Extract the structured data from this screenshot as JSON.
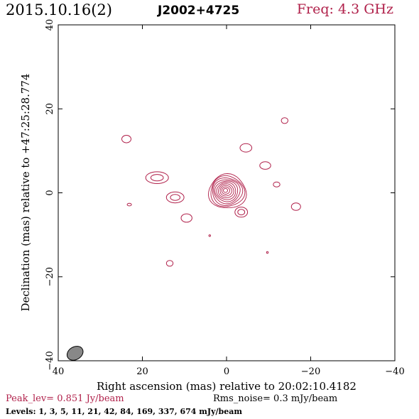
{
  "header": {
    "date": "2015.10.16(2)",
    "source": "J2002+4725",
    "freq_label": "Freq: 4.3 GHz"
  },
  "footer": {
    "peak_label": "Peak_lev=",
    "peak_value": "0.851 Jy/beam",
    "rms_label": "Rms_noise=",
    "rms_value": "0.3 mJy/beam",
    "levels_label": "Levels:",
    "levels_value": "1,   3,   5,   11,   21,   42,   84, 169, 337, 674 mJy/beam"
  },
  "colors": {
    "contour": "#b0204a",
    "beam": "#888888"
  },
  "chart_data": {
    "type": "contour",
    "xlabel": "Right ascension (mas) relative to 20:02:10.4182",
    "ylabel": "Declination (mas) relative to +47:25:28.774",
    "xlim": [
      40,
      -40
    ],
    "ylim": [
      -40,
      40
    ],
    "xticks": [
      40,
      20,
      0,
      -20,
      -40
    ],
    "yticks": [
      -40,
      -20,
      0,
      20,
      40
    ],
    "xtick_labels": [
      "40",
      "20",
      "0",
      "−20",
      "−40"
    ],
    "ytick_labels": [
      "−40",
      "−20",
      "0",
      "20",
      "40"
    ],
    "contour_levels_mJy": [
      1,
      3,
      5,
      11,
      21,
      42,
      84,
      169,
      337,
      674
    ],
    "core": {
      "x": 0.3,
      "y": 0.6,
      "n_contours": 10
    },
    "components": [
      {
        "x": 23.8,
        "y": 12.8,
        "rx": 1.1,
        "ry": 0.9,
        "n": 1
      },
      {
        "x": 16.5,
        "y": 3.6,
        "rx": 2.7,
        "ry": 1.4,
        "n": 2
      },
      {
        "x": 12.2,
        "y": -1.1,
        "rx": 2.1,
        "ry": 1.3,
        "n": 2
      },
      {
        "x": 9.5,
        "y": -6.0,
        "rx": 1.3,
        "ry": 1.0,
        "n": 1
      },
      {
        "x": 23.1,
        "y": -2.8,
        "rx": 0.5,
        "ry": 0.3,
        "n": 1
      },
      {
        "x": 13.5,
        "y": -16.8,
        "rx": 0.8,
        "ry": 0.7,
        "n": 1
      },
      {
        "x": 4.0,
        "y": -10.2,
        "rx": 0.2,
        "ry": 0.2,
        "n": 1
      },
      {
        "x": -4.6,
        "y": 10.7,
        "rx": 1.4,
        "ry": 1.0,
        "n": 1
      },
      {
        "x": -9.2,
        "y": 6.5,
        "rx": 1.3,
        "ry": 0.9,
        "n": 1
      },
      {
        "x": -13.8,
        "y": 17.2,
        "rx": 0.8,
        "ry": 0.7,
        "n": 1
      },
      {
        "x": -11.9,
        "y": 2.0,
        "rx": 0.8,
        "ry": 0.6,
        "n": 1
      },
      {
        "x": -3.5,
        "y": -4.6,
        "rx": 1.5,
        "ry": 1.2,
        "n": 2
      },
      {
        "x": -16.5,
        "y": -3.3,
        "rx": 1.1,
        "ry": 0.9,
        "n": 1
      },
      {
        "x": -9.7,
        "y": -14.2,
        "rx": 0.2,
        "ry": 0.2,
        "n": 1
      }
    ],
    "beam": {
      "x": 36.0,
      "y": -38.2,
      "major_mas": 3.0,
      "minor_mas": 2.2,
      "pa_deg": 30
    }
  }
}
